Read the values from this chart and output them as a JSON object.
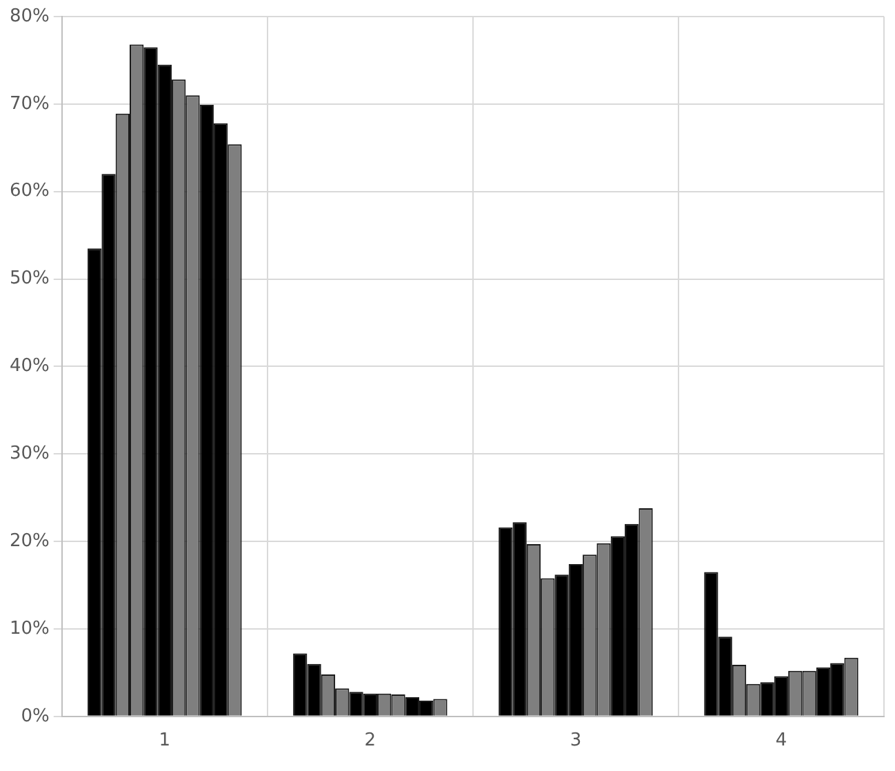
{
  "chart_data": {
    "type": "bar",
    "categories": [
      "1",
      "2",
      "3",
      "4"
    ],
    "series": [
      {
        "color": "#000000",
        "values": [
          53.5,
          7.2,
          21.6,
          16.5
        ]
      },
      {
        "color": "#000000",
        "values": [
          62.0,
          6.0,
          22.2,
          9.1
        ]
      },
      {
        "color": "#7f7f7f",
        "values": [
          68.9,
          4.8,
          19.7,
          5.9
        ]
      },
      {
        "color": "#7f7f7f",
        "values": [
          76.8,
          3.2,
          15.8,
          3.7
        ]
      },
      {
        "color": "#000000",
        "values": [
          76.5,
          2.8,
          16.2,
          3.9
        ]
      },
      {
        "color": "#000000",
        "values": [
          74.5,
          2.6,
          17.4,
          4.6
        ]
      },
      {
        "color": "#7f7f7f",
        "values": [
          72.8,
          2.6,
          18.5,
          5.2
        ]
      },
      {
        "color": "#7f7f7f",
        "values": [
          71.0,
          2.5,
          19.8,
          5.2
        ]
      },
      {
        "color": "#000000",
        "values": [
          69.9,
          2.2,
          20.6,
          5.6
        ]
      },
      {
        "color": "#000000",
        "values": [
          67.8,
          1.8,
          22.0,
          6.1
        ]
      },
      {
        "color": "#7f7f7f",
        "values": [
          65.4,
          2.0,
          23.8,
          6.7
        ]
      }
    ],
    "ylim": [
      0,
      80
    ],
    "yticks": [
      {
        "value": 0,
        "label": "0%"
      },
      {
        "value": 10,
        "label": "10%"
      },
      {
        "value": 20,
        "label": "20%"
      },
      {
        "value": 30,
        "label": "30%"
      },
      {
        "value": 40,
        "label": "40%"
      },
      {
        "value": 50,
        "label": "50%"
      },
      {
        "value": 60,
        "label": "60%"
      },
      {
        "value": 70,
        "label": "70%"
      },
      {
        "value": 80,
        "label": "80%"
      }
    ],
    "grid": true,
    "legend": false
  }
}
